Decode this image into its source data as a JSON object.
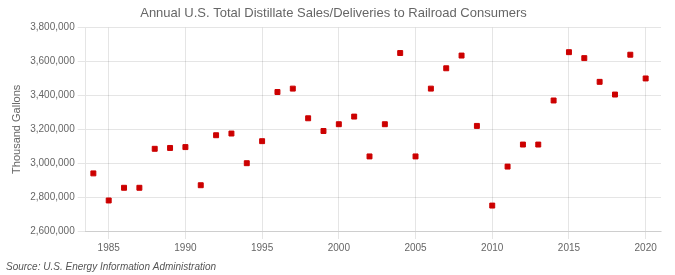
{
  "chart_data": {
    "type": "scatter",
    "title": "Annual U.S. Total Distillate Sales/Deliveries to Railroad Consumers",
    "ylabel": "Thousand Gallons",
    "annotations": [
      "Source: U.S. Energy Information Administration"
    ],
    "x": [
      1984,
      1985,
      1986,
      1987,
      1988,
      1989,
      1990,
      1991,
      1992,
      1993,
      1994,
      1995,
      1996,
      1997,
      1998,
      1999,
      2000,
      2001,
      2002,
      2003,
      2004,
      2005,
      2006,
      2007,
      2008,
      2009,
      2010,
      2011,
      2012,
      2013,
      2014,
      2015,
      2016,
      2017,
      2018,
      2019,
      2020
    ],
    "values": [
      2940000,
      2780000,
      2855000,
      2855000,
      3085000,
      3090000,
      3095000,
      2870000,
      3165000,
      3175000,
      3000000,
      3130000,
      3420000,
      3440000,
      3265000,
      3190000,
      3230000,
      3275000,
      3040000,
      3230000,
      3650000,
      3040000,
      3440000,
      3560000,
      3635000,
      3220000,
      2750000,
      2980000,
      3110000,
      3110000,
      3370000,
      3655000,
      3620000,
      3480000,
      3405000,
      3640000,
      3500000
    ],
    "color": "#cc0000",
    "marker": "square",
    "xlim": [
      1983.5,
      2021
    ],
    "xticks": [
      1985,
      1990,
      1995,
      2000,
      2005,
      2010,
      2015,
      2020
    ],
    "ylim": [
      2600000,
      3800000
    ],
    "yticks": [
      {
        "value": 2600000,
        "label": "2,600,000"
      },
      {
        "value": 2800000,
        "label": "2,800,000"
      },
      {
        "value": 3000000,
        "label": "3,000,000"
      },
      {
        "value": 3200000,
        "label": "3,200,000"
      },
      {
        "value": 3400000,
        "label": "3,400,000"
      },
      {
        "value": 3600000,
        "label": "3,600,000"
      },
      {
        "value": 3800000,
        "label": "3,800,000"
      }
    ],
    "grid": true
  }
}
